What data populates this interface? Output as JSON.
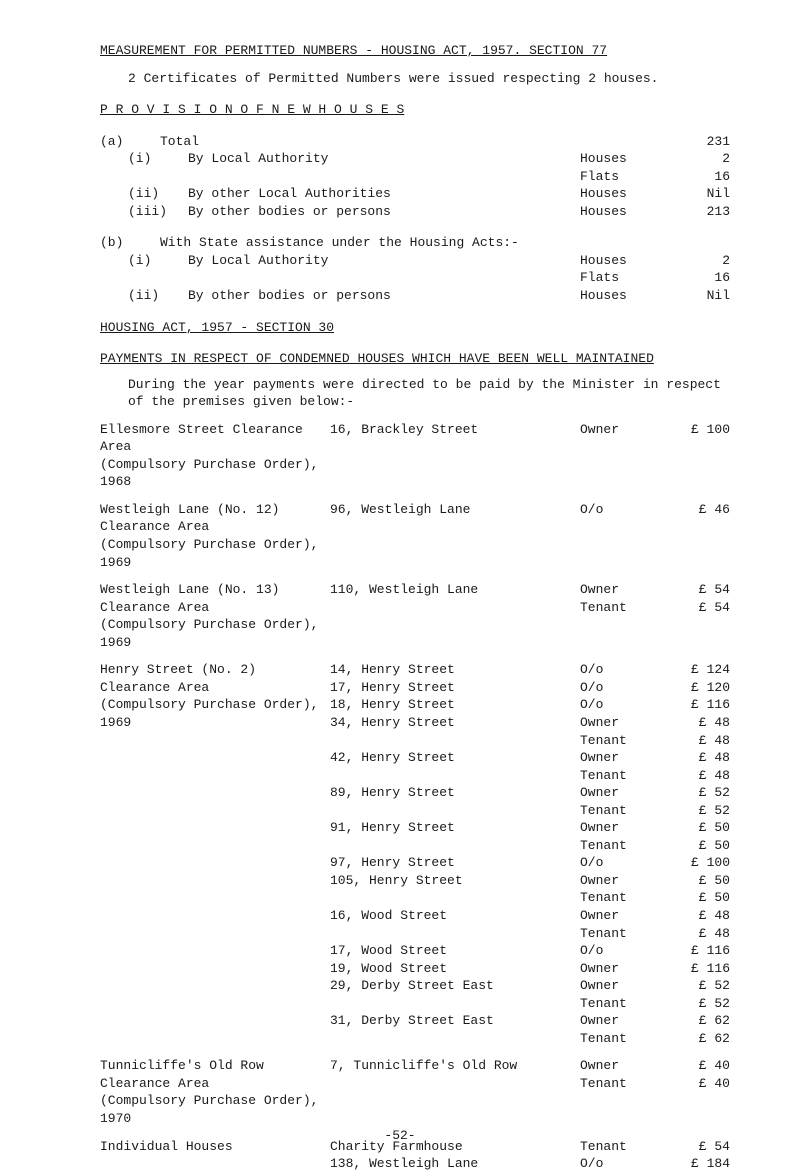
{
  "header": {
    "measurement_line": "MEASUREMENT FOR PERMITTED NUMBERS - HOUSING ACT, 1957.  SECTION 77",
    "cert_line": "2 Certificates of Permitted Numbers were issued respecting 2 houses."
  },
  "provision": {
    "heading": "P R O V I S I O N   O F   N E W   H O U S E S",
    "a_label": "(a)",
    "a_total_label": "Total",
    "a_total_value": "231",
    "items_a": [
      {
        "num": "(i)",
        "text": "By Local Authority",
        "lab": "Houses",
        "val": "2"
      },
      {
        "num": "",
        "text": "",
        "lab": "Flats",
        "val": "16"
      },
      {
        "num": "(ii)",
        "text": "By other Local Authorities",
        "lab": "Houses",
        "val": "Nil"
      },
      {
        "num": "(iii)",
        "text": "By other bodies or persons",
        "lab": "Houses",
        "val": "213"
      }
    ],
    "b_label": "(b)",
    "b_text": "With State assistance under the Housing Acts:-",
    "items_b": [
      {
        "num": "(i)",
        "text": "By Local Authority",
        "lab": "Houses",
        "val": "2"
      },
      {
        "num": "",
        "text": "",
        "lab": "Flats",
        "val": "16"
      },
      {
        "num": "(ii)",
        "text": "By other bodies or persons",
        "lab": "Houses",
        "val": "Nil"
      }
    ]
  },
  "section30": {
    "heading": "HOUSING ACT, 1957 - SECTION 30",
    "payments_heading": "PAYMENTS IN RESPECT OF CONDEMNED HOUSES WHICH HAVE BEEN WELL MAINTAINED",
    "intro": "During the year payments were directed to be paid by the Minister in respect of the premises given below:-"
  },
  "blocks": [
    {
      "area": [
        "Ellesmore Street Clearance Area",
        "(Compulsory Purchase Order), 1968"
      ],
      "rows": [
        {
          "addr": "16, Brackley Street",
          "amts": [
            {
              "who": "Owner",
              "amt": "£ 100"
            }
          ]
        }
      ]
    },
    {
      "area": [
        "Westleigh Lane (No. 12) Clearance Area",
        "(Compulsory Purchase Order), 1969"
      ],
      "rows": [
        {
          "addr": "96, Westleigh Lane",
          "amts": [
            {
              "who": "O/o",
              "amt": "£  46"
            }
          ]
        }
      ]
    },
    {
      "area": [
        "Westleigh Lane (No. 13) Clearance Area",
        "(Compulsory Purchase Order), 1969"
      ],
      "rows": [
        {
          "addr": "110, Westleigh Lane",
          "amts": [
            {
              "who": "Owner",
              "amt": "£  54"
            },
            {
              "who": "Tenant",
              "amt": "£  54"
            }
          ]
        }
      ]
    },
    {
      "area": [
        "Henry Street (No. 2) Clearance Area",
        "(Compulsory Purchase Order), 1969"
      ],
      "rows": [
        {
          "addr": "14, Henry Street",
          "amts": [
            {
              "who": "O/o",
              "amt": "£ 124"
            }
          ]
        },
        {
          "addr": "17, Henry Street",
          "amts": [
            {
              "who": "O/o",
              "amt": "£ 120"
            }
          ]
        },
        {
          "addr": "18, Henry Street",
          "amts": [
            {
              "who": "O/o",
              "amt": "£ 116"
            }
          ]
        },
        {
          "addr": "34, Henry Street",
          "amts": [
            {
              "who": "Owner",
              "amt": "£  48"
            },
            {
              "who": "Tenant",
              "amt": "£  48"
            }
          ]
        },
        {
          "addr": "42, Henry Street",
          "amts": [
            {
              "who": "Owner",
              "amt": "£  48"
            },
            {
              "who": "Tenant",
              "amt": "£  48"
            }
          ]
        },
        {
          "addr": "89, Henry Street",
          "amts": [
            {
              "who": "Owner",
              "amt": "£  52"
            },
            {
              "who": "Tenant",
              "amt": "£  52"
            }
          ]
        },
        {
          "addr": "91, Henry Street",
          "amts": [
            {
              "who": "Owner",
              "amt": "£  50"
            },
            {
              "who": "Tenant",
              "amt": "£  50"
            }
          ]
        },
        {
          "addr": "97, Henry Street",
          "amts": [
            {
              "who": "O/o",
              "amt": "£ 100"
            }
          ]
        },
        {
          "addr": "105, Henry Street",
          "amts": [
            {
              "who": "Owner",
              "amt": "£  50"
            },
            {
              "who": "Tenant",
              "amt": "£  50"
            }
          ]
        },
        {
          "addr": "16, Wood Street",
          "amts": [
            {
              "who": "Owner",
              "amt": "£  48"
            },
            {
              "who": "Tenant",
              "amt": "£  48"
            }
          ]
        },
        {
          "addr": "17, Wood Street",
          "amts": [
            {
              "who": "O/o",
              "amt": "£ 116"
            }
          ]
        },
        {
          "addr": "19, Wood Street",
          "amts": [
            {
              "who": "Owner",
              "amt": "£ 116"
            }
          ]
        },
        {
          "addr": "29, Derby Street East",
          "amts": [
            {
              "who": "Owner",
              "amt": "£  52"
            },
            {
              "who": "Tenant",
              "amt": "£  52"
            }
          ]
        },
        {
          "addr": "31, Derby Street East",
          "amts": [
            {
              "who": "Owner",
              "amt": "£  62"
            },
            {
              "who": "Tenant",
              "amt": "£  62"
            }
          ]
        }
      ]
    },
    {
      "area": [
        "Tunnicliffe's Old Row Clearance Area",
        "(Compulsory Purchase Order), 1970"
      ],
      "rows": [
        {
          "addr": "7, Tunnicliffe's Old Row",
          "amts": [
            {
              "who": "Owner",
              "amt": "£  40"
            },
            {
              "who": "Tenant",
              "amt": "£  40"
            }
          ]
        }
      ]
    },
    {
      "area": [
        "Individual Houses"
      ],
      "rows": [
        {
          "addr": "Charity Farmhouse",
          "amts": [
            {
              "who": "Tenant",
              "amt": "£  54"
            }
          ]
        },
        {
          "addr": "138, Westleigh Lane",
          "amts": [
            {
              "who": "O/o",
              "amt": "£ 184"
            }
          ]
        }
      ]
    }
  ],
  "footer": "-52-"
}
